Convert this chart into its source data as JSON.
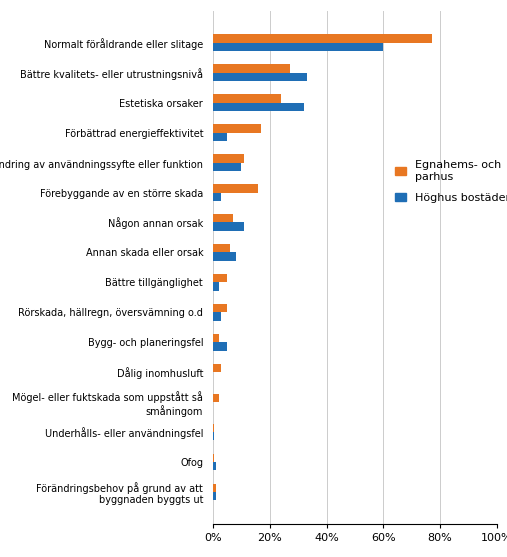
{
  "categories": [
    "Förändringsbehov på grund av att\nbyggnaden byggts ut",
    "Ofog",
    "Underhålls- eller användningsfel",
    "Mögel- eller fuktskada som uppstått så\nsmåningom",
    "Dålig inomhusluft",
    "Bygg- och planeringsfel",
    "Rörskada, hällregn, översvämning o.d",
    "Bättre tillgänglighet",
    "Annan skada eller orsak",
    "Någon annan orsak",
    "Förebyggande av en större skada",
    "Ändring av användningssyfte eller funktion",
    "Förbättrad energieffektivitet",
    "Estetiska orsaker",
    "Bättre kvalitets- eller utrustningsnivå",
    "Normalt föråldrande eller slitage"
  ],
  "egnahems": [
    1,
    0.5,
    0.5,
    2,
    3,
    2,
    5,
    5,
    6,
    7,
    16,
    11,
    17,
    24,
    27,
    77
  ],
  "hoghus": [
    1,
    1,
    0.5,
    0,
    0,
    5,
    3,
    2,
    8,
    11,
    3,
    10,
    5,
    32,
    33,
    60
  ],
  "color_egnahems": "#E87722",
  "color_hoghus": "#1F6EB5",
  "legend_egnahems": "Egnahems- och\nparhus",
  "legend_hoghus": "Höghus bostäder",
  "xlim": [
    0,
    100
  ],
  "xtick_labels": [
    "0%",
    "20%",
    "40%",
    "60%",
    "80%",
    "100%"
  ],
  "xtick_values": [
    0,
    20,
    40,
    60,
    80,
    100
  ],
  "figsize": [
    5.07,
    5.57
  ],
  "dpi": 100
}
